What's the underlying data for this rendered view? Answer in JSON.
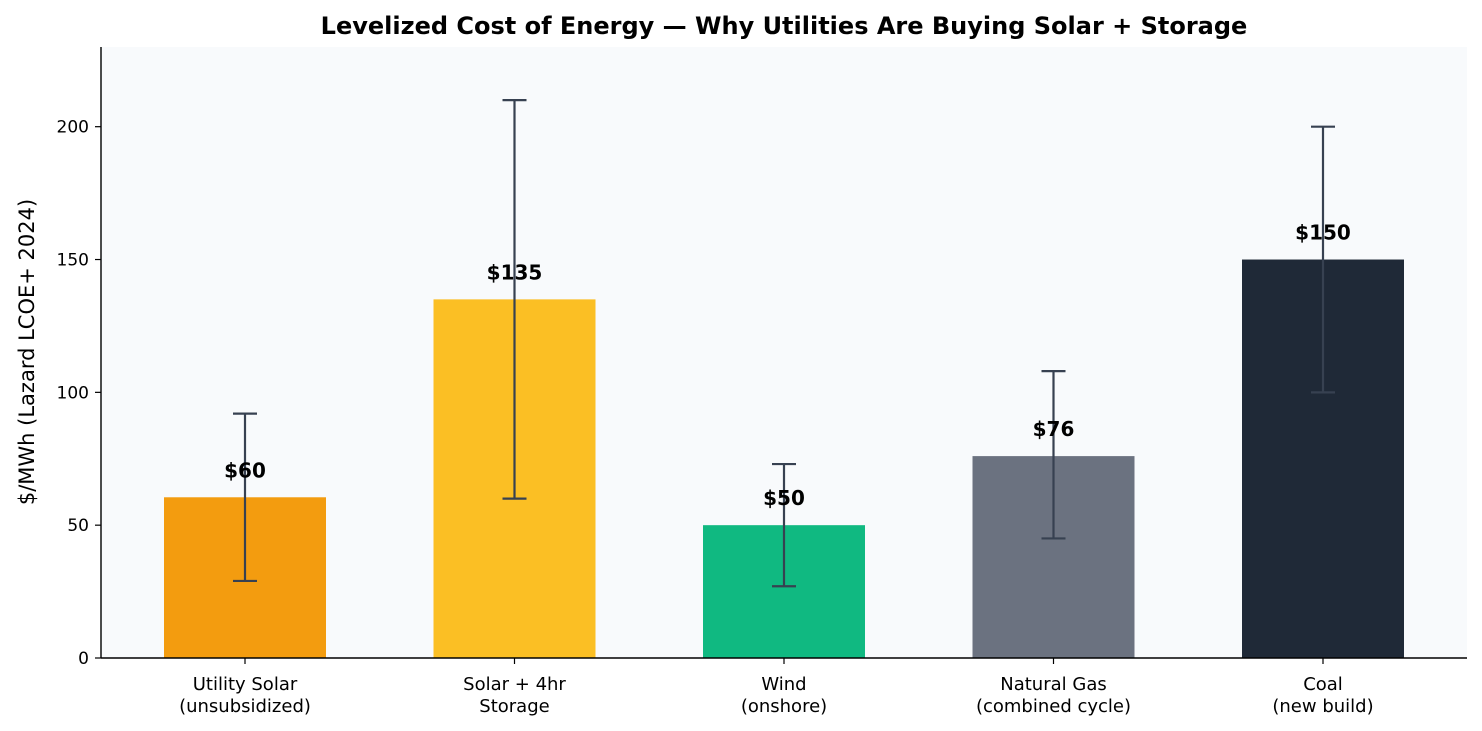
{
  "chart_data": {
    "type": "bar",
    "title": "Levelized Cost of Energy — Why Utilities Are Buying Solar + Storage",
    "xlabel": "",
    "ylabel": "$/MWh (Lazard LCOE+ 2024)",
    "ylim": [
      0,
      230
    ],
    "yticks": [
      0,
      50,
      100,
      150,
      200
    ],
    "grid": false,
    "categories": [
      [
        "Utility Solar",
        "(unsubsidized)"
      ],
      [
        "Solar + 4hr",
        "Storage"
      ],
      [
        "Wind",
        "(onshore)"
      ],
      [
        "Natural Gas",
        "(combined cycle)"
      ],
      [
        "Coal",
        "(new build)"
      ]
    ],
    "values": [
      60.5,
      135,
      50,
      76,
      150
    ],
    "error_low": [
      29,
      60,
      27,
      45,
      100
    ],
    "error_high": [
      92,
      210,
      73,
      108,
      200
    ],
    "value_labels": [
      "$60",
      "$135",
      "$50",
      "$76",
      "$150"
    ],
    "colors": [
      "#f39c0f",
      "#fbbf24",
      "#10b981",
      "#6b7280",
      "#1f2937"
    ],
    "errorbar_color": "#374151",
    "plot_background": "#f8fafc"
  }
}
